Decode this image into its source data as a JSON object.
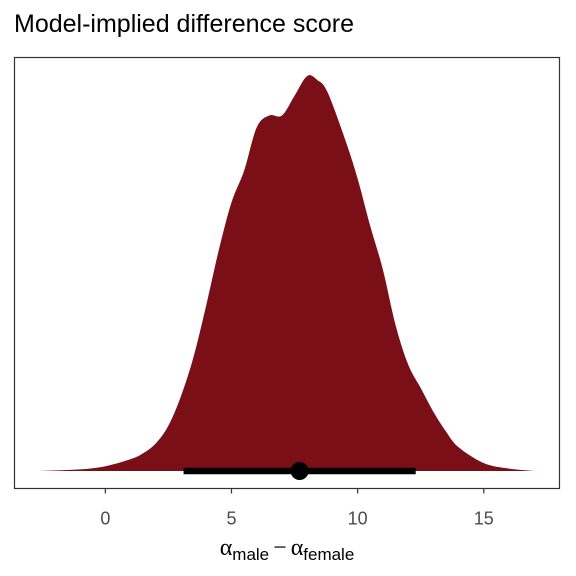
{
  "title": "Model-implied difference score",
  "colors": {
    "density_fill": "#7a0f18",
    "interval": "#000000",
    "panel_border": "#333333",
    "tick_text": "#4d4d4d"
  },
  "chart_data": {
    "type": "area",
    "title": "Model-implied difference score",
    "xlabel": {
      "symbol_1": "α",
      "sub_1": "male",
      "operator": "−",
      "symbol_2": "α",
      "sub_2": "female"
    },
    "ylabel": "",
    "xlim": [
      -3.6,
      18.0
    ],
    "x_ticks": [
      0,
      5,
      10,
      15
    ],
    "x_tick_labels": [
      "0",
      "5",
      "10",
      "15"
    ],
    "y_ticks_shown": false,
    "grid": false,
    "density": {
      "x": [
        -2.6,
        -1.0,
        0.0,
        1.0,
        1.5,
        2.0,
        2.5,
        3.0,
        3.5,
        4.0,
        4.5,
        5.0,
        5.5,
        6.0,
        6.5,
        7.0,
        7.5,
        8.0,
        8.4,
        8.8,
        9.5,
        10.0,
        10.5,
        11.0,
        11.5,
        12.0,
        12.5,
        13.0,
        13.5,
        14.0,
        15.0,
        16.0,
        17.0
      ],
      "y": [
        0.0,
        0.004,
        0.012,
        0.03,
        0.045,
        0.07,
        0.115,
        0.19,
        0.29,
        0.42,
        0.56,
        0.68,
        0.76,
        0.87,
        0.9,
        0.9,
        0.95,
        1.0,
        0.99,
        0.96,
        0.84,
        0.74,
        0.62,
        0.51,
        0.37,
        0.27,
        0.21,
        0.15,
        0.1,
        0.06,
        0.02,
        0.006,
        0.0
      ]
    },
    "point_interval": {
      "point": 7.7,
      "lower": 3.1,
      "upper": 12.3
    }
  }
}
